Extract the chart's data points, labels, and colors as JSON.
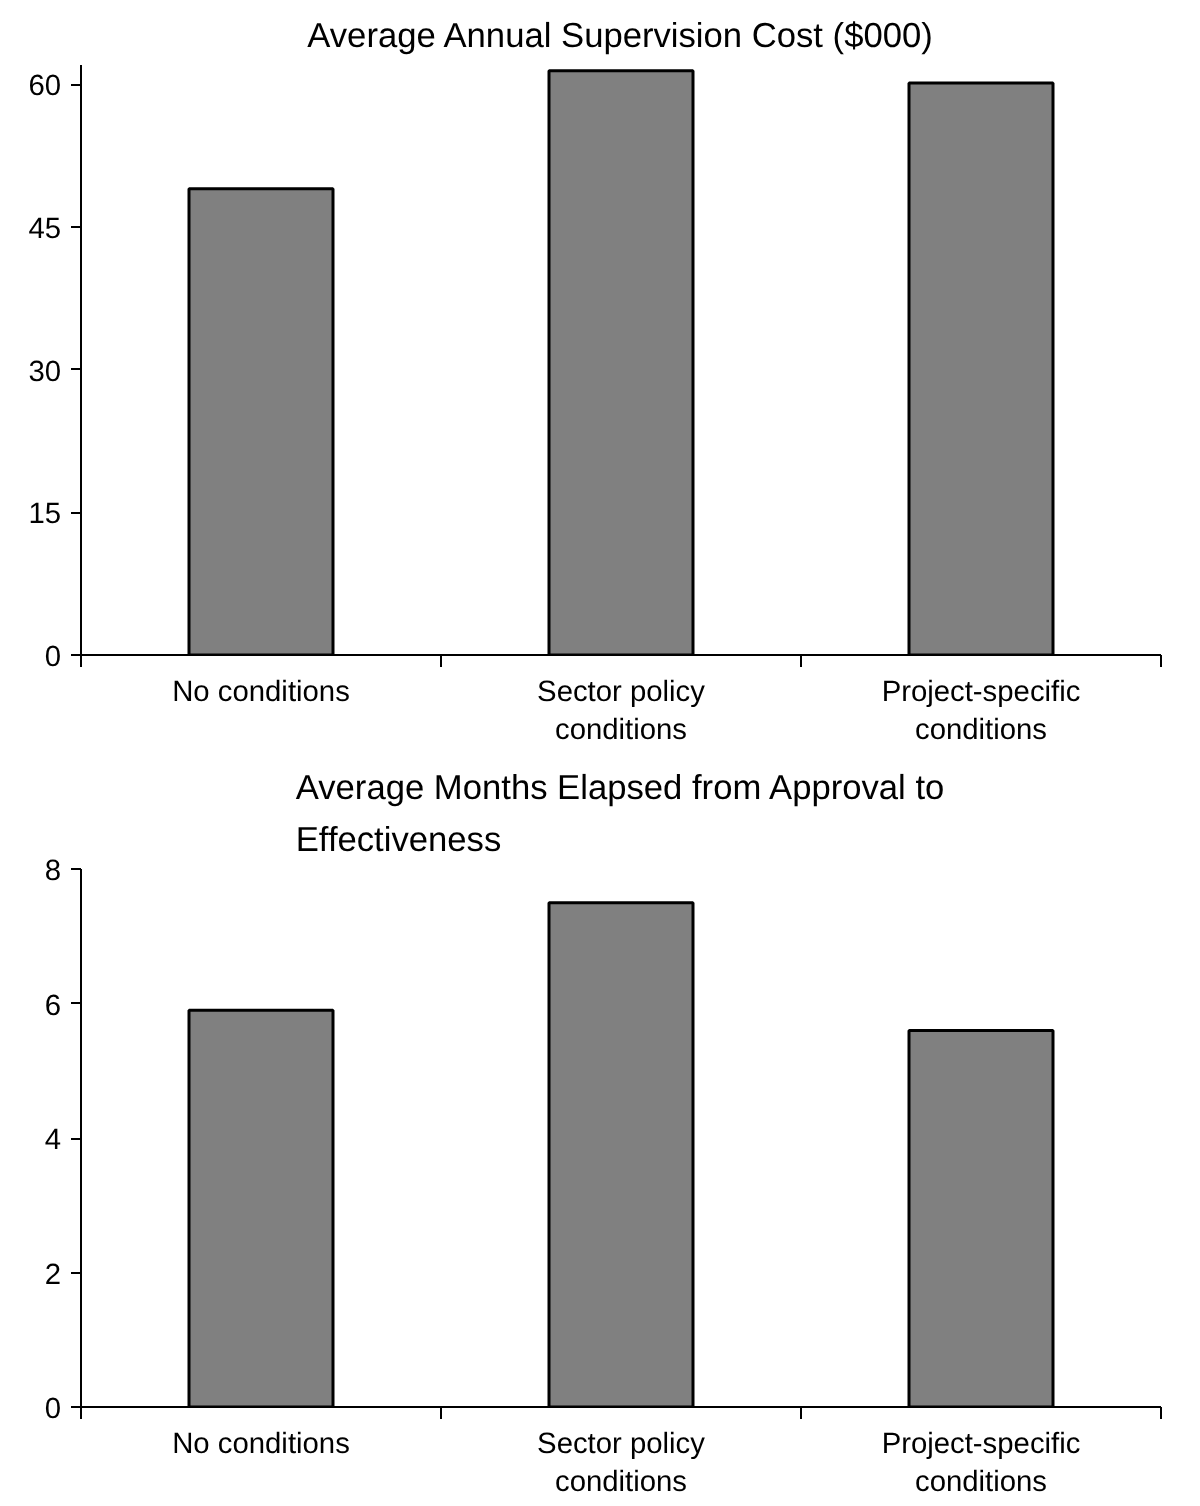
{
  "chart_data": [
    {
      "type": "bar",
      "title": "Average Annual Supervision Cost ($000)",
      "categories": [
        "No conditions",
        "Sector policy\nconditions",
        "Project-specific\nconditions"
      ],
      "values": [
        49,
        61.4,
        60.1
      ],
      "color": "#808080",
      "ylim": [
        0,
        62
      ],
      "yticks": [
        0,
        15,
        30,
        45,
        60
      ],
      "grid": false
    },
    {
      "type": "bar",
      "title": "Average Months Elapsed from Approval to\nEffectiveness",
      "categories": [
        "No conditions",
        "Sector policy\nconditions",
        "Project-specific\nconditions"
      ],
      "values": [
        5.9,
        7.5,
        5.6
      ],
      "color": "#808080",
      "ylim": [
        0,
        8
      ],
      "yticks": [
        0,
        2,
        4,
        6,
        8
      ],
      "grid": false
    }
  ]
}
